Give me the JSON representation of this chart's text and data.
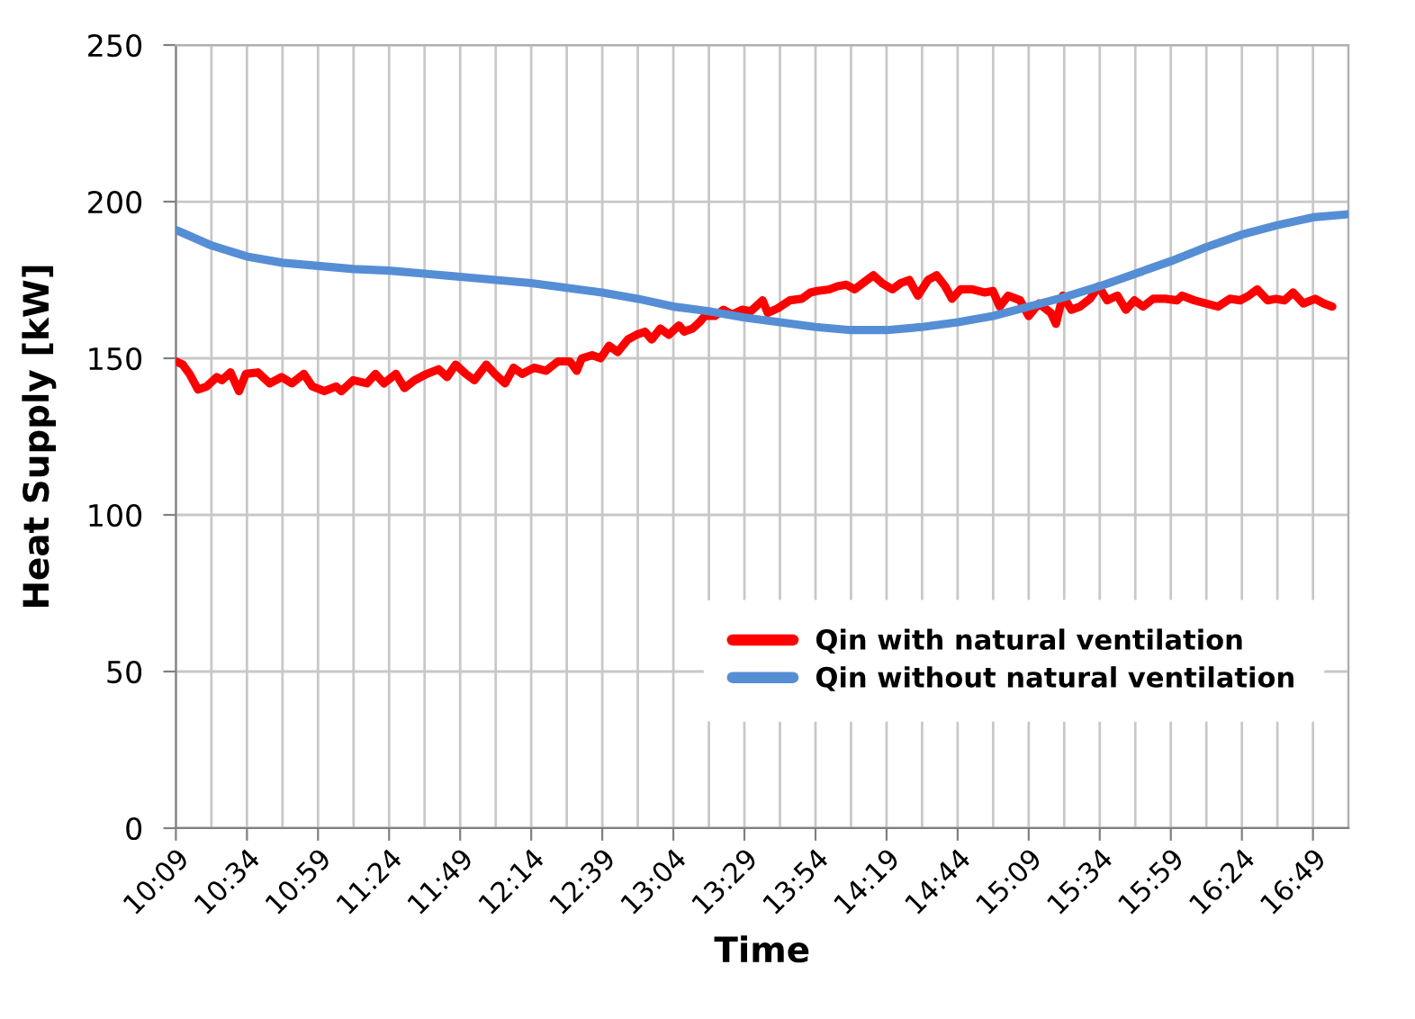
{
  "chart_data": {
    "type": "line",
    "xlabel": "Time",
    "ylabel": "Heat Supply [kW]",
    "xlim": [
      10.15,
      17.025
    ],
    "xticks": [
      {
        "value": 10.15,
        "label": "10:09"
      },
      {
        "value": 10.3583,
        "label": null
      },
      {
        "value": 10.5667,
        "label": "10:34"
      },
      {
        "value": 10.775,
        "label": null
      },
      {
        "value": 10.9833,
        "label": "10:59"
      },
      {
        "value": 11.1917,
        "label": null
      },
      {
        "value": 11.4,
        "label": "11:24"
      },
      {
        "value": 11.6083,
        "label": null
      },
      {
        "value": 11.8167,
        "label": "11:49"
      },
      {
        "value": 12.025,
        "label": null
      },
      {
        "value": 12.2333,
        "label": "12:14"
      },
      {
        "value": 12.4417,
        "label": null
      },
      {
        "value": 12.65,
        "label": "12:39"
      },
      {
        "value": 12.8583,
        "label": null
      },
      {
        "value": 13.0667,
        "label": "13:04"
      },
      {
        "value": 13.275,
        "label": null
      },
      {
        "value": 13.4833,
        "label": "13:29"
      },
      {
        "value": 13.6917,
        "label": null
      },
      {
        "value": 13.9,
        "label": "13:54"
      },
      {
        "value": 14.1083,
        "label": null
      },
      {
        "value": 14.3167,
        "label": "14:19"
      },
      {
        "value": 14.525,
        "label": null
      },
      {
        "value": 14.7333,
        "label": "14:44"
      },
      {
        "value": 14.9417,
        "label": null
      },
      {
        "value": 15.15,
        "label": "15:09"
      },
      {
        "value": 15.3583,
        "label": null
      },
      {
        "value": 15.5667,
        "label": "15:34"
      },
      {
        "value": 15.775,
        "label": null
      },
      {
        "value": 15.9833,
        "label": "15:59"
      },
      {
        "value": 16.1917,
        "label": null
      },
      {
        "value": 16.4,
        "label": "16:24"
      },
      {
        "value": 16.6083,
        "label": null
      },
      {
        "value": 16.8167,
        "label": "16:49"
      },
      {
        "value": 17.025,
        "label": null
      }
    ],
    "ylim": [
      0,
      250
    ],
    "yticks": [
      0,
      50,
      100,
      150,
      200,
      250
    ],
    "grid": true,
    "legend": "lower right",
    "series": [
      {
        "name": "Qin with natural ventilation",
        "color": "#ff0000",
        "x": [
          10.15,
          10.19,
          10.23,
          10.28,
          10.33,
          10.39,
          10.42,
          10.47,
          10.52,
          10.56,
          10.63,
          10.7,
          10.77,
          10.83,
          10.9,
          10.95,
          11.02,
          11.09,
          11.12,
          11.19,
          11.27,
          11.32,
          11.37,
          11.44,
          11.49,
          11.55,
          11.62,
          11.69,
          11.74,
          11.79,
          11.85,
          11.9,
          11.97,
          12.02,
          12.08,
          12.13,
          12.18,
          12.25,
          12.32,
          12.39,
          12.46,
          12.5,
          12.53,
          12.59,
          12.64,
          12.69,
          12.74,
          12.8,
          12.85,
          12.9,
          12.94,
          12.99,
          13.04,
          13.1,
          13.13,
          13.18,
          13.22,
          13.25,
          13.31,
          13.36,
          13.41,
          13.47,
          13.52,
          13.55,
          13.59,
          13.62,
          13.68,
          13.75,
          13.82,
          13.87,
          13.91,
          13.98,
          14.03,
          14.08,
          14.13,
          14.19,
          14.24,
          14.29,
          14.35,
          14.4,
          14.45,
          14.5,
          14.56,
          14.61,
          14.66,
          14.7,
          14.75,
          14.82,
          14.89,
          14.94,
          14.98,
          15.03,
          15.1,
          15.15,
          15.21,
          15.28,
          15.31,
          15.35,
          15.4,
          15.45,
          15.51,
          15.56,
          15.61,
          15.67,
          15.72,
          15.77,
          15.82,
          15.88,
          15.95,
          16.02,
          16.05,
          16.12,
          16.19,
          16.26,
          16.33,
          16.39,
          16.44,
          16.49,
          16.55,
          16.6,
          16.65,
          16.7,
          16.76,
          16.83,
          16.88,
          16.93
        ],
        "values": [
          149,
          148,
          145,
          140,
          141,
          144,
          143,
          145.5,
          139.5,
          145,
          145.5,
          142,
          144,
          142,
          145,
          141,
          139.5,
          141,
          139.5,
          143,
          142,
          145,
          142,
          145,
          140.5,
          143,
          145,
          146.5,
          144,
          148,
          145,
          143,
          148,
          145,
          142,
          147,
          145,
          147,
          146,
          149,
          149,
          146,
          150,
          151,
          150,
          154,
          152,
          156,
          157.5,
          158.5,
          156,
          159.5,
          157.5,
          160.5,
          158.5,
          159.5,
          161.5,
          163.5,
          163.5,
          165.5,
          164,
          165.5,
          165,
          166.5,
          168.5,
          164.5,
          166,
          168.5,
          169,
          171,
          171.5,
          172,
          173,
          173.5,
          172,
          174.5,
          176.5,
          174,
          172,
          174,
          175,
          170,
          175,
          176.5,
          173,
          169,
          172,
          172,
          171,
          171.5,
          166.5,
          170,
          168.5,
          163.5,
          167.5,
          164.5,
          161,
          170,
          165.5,
          166.5,
          169,
          173,
          168.5,
          170,
          165.5,
          168.5,
          166.5,
          169,
          169,
          168.5,
          170,
          168.5,
          167.5,
          166.5,
          169,
          168.5,
          170,
          172,
          168.5,
          169,
          168.5,
          171,
          167.5,
          169,
          167.5,
          166.5
        ]
      },
      {
        "name": "Qin without natural ventilation",
        "color": "#558ed5",
        "x": [
          10.15,
          10.3583,
          10.5667,
          10.775,
          10.9833,
          11.1917,
          11.4,
          11.6083,
          11.8167,
          12.025,
          12.2333,
          12.4417,
          12.65,
          12.8583,
          13.0667,
          13.275,
          13.4833,
          13.6917,
          13.9,
          14.1083,
          14.3167,
          14.525,
          14.7333,
          14.9417,
          15.15,
          15.3583,
          15.5667,
          15.775,
          15.9833,
          16.1917,
          16.4,
          16.6083,
          16.8167,
          17.025
        ],
        "values": [
          191,
          186,
          182.5,
          180.5,
          179.5,
          178.5,
          178,
          177,
          176,
          175,
          174,
          172.5,
          171,
          169,
          166.5,
          165,
          163,
          161.5,
          160,
          159,
          159,
          160,
          161.5,
          163.5,
          166.5,
          169.5,
          173,
          177,
          181,
          185.5,
          189.5,
          192.5,
          195,
          196
        ]
      }
    ]
  }
}
